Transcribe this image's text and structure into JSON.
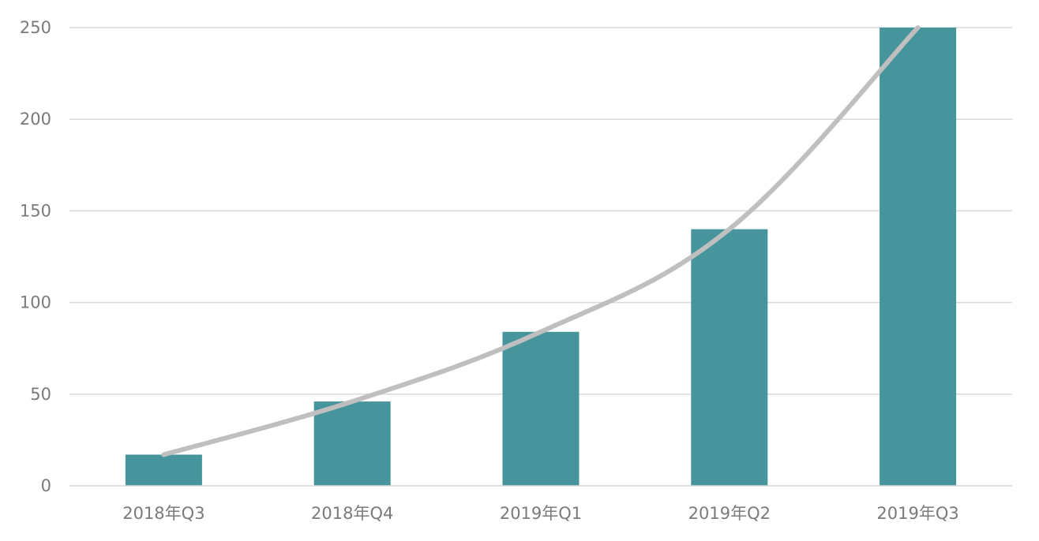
{
  "chart_data": {
    "type": "bar",
    "categories": [
      "2018年Q3",
      "2018年Q4",
      "2019年Q1",
      "2019年Q2",
      "2019年Q3"
    ],
    "series": [
      {
        "type": "bar",
        "values": [
          17,
          46,
          84,
          140,
          250
        ],
        "color": "#46949c"
      },
      {
        "type": "line",
        "values": [
          17,
          46,
          84,
          140,
          250
        ],
        "color": "#bfbfbf"
      }
    ],
    "yticks": [
      0,
      50,
      100,
      150,
      200,
      250
    ],
    "ylim": [
      0,
      250
    ],
    "grid": true,
    "legend": "none",
    "colors": {
      "grid": "#d9d9d9",
      "tick_text": "#7a7a7a"
    }
  }
}
